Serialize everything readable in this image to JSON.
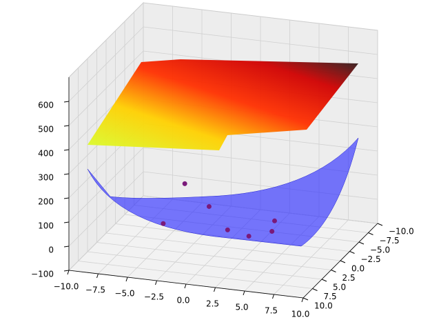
{
  "chart_data": {
    "type": "surface3d",
    "xlim": [
      -10,
      10
    ],
    "ylim": [
      -10,
      10
    ],
    "zlim": [
      -100,
      700
    ],
    "xticks": [
      {
        "value": -10,
        "label": "−10.0"
      },
      {
        "value": -7.5,
        "label": "−7.5"
      },
      {
        "value": -5,
        "label": "−5.0"
      },
      {
        "value": -2.5,
        "label": "−2.5"
      },
      {
        "value": 0,
        "label": "0.0"
      },
      {
        "value": 2.5,
        "label": "2.5"
      },
      {
        "value": 5,
        "label": "5.0"
      },
      {
        "value": 7.5,
        "label": "7.5"
      },
      {
        "value": 10,
        "label": "10.0"
      }
    ],
    "yticks": [
      {
        "value": -10,
        "label": "−10.0"
      },
      {
        "value": -7.5,
        "label": "−7.5"
      },
      {
        "value": -5,
        "label": "−5.0"
      },
      {
        "value": -2.5,
        "label": "−2.5"
      },
      {
        "value": 0,
        "label": "0.0"
      },
      {
        "value": 2.5,
        "label": "2.5"
      },
      {
        "value": 5,
        "label": "5.0"
      },
      {
        "value": 7.5,
        "label": "7.5"
      },
      {
        "value": 10,
        "label": "10.0"
      }
    ],
    "zticks": [
      {
        "value": -100,
        "label": "−100"
      },
      0,
      100,
      200,
      300,
      400,
      500,
      600
    ],
    "grid": true,
    "scatter": {
      "color": "#7a1a7a",
      "x": [
        -5.0,
        -1.4,
        -3.6,
        1.8,
        3.9,
        4.7,
        5.3
      ],
      "y": [
        -5.4,
        -0.6,
        4.8,
        4.5,
        5.4,
        1.0,
        3.6
      ],
      "z": [
        50,
        50,
        50,
        50,
        50,
        50,
        50
      ]
    }
  }
}
